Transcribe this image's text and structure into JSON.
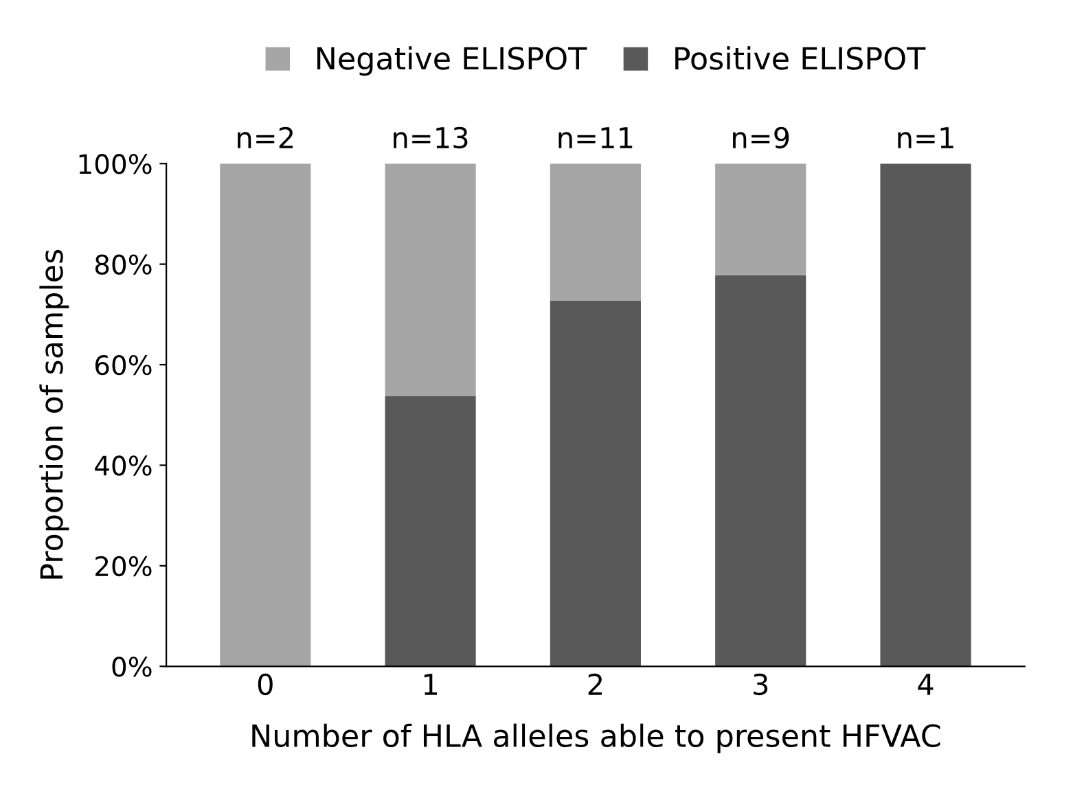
{
  "chart_data": {
    "type": "bar",
    "stacked": true,
    "xlabel": "Number of HLA alleles able to present HFVAC",
    "ylabel": "Proportion of samples",
    "categories": [
      "0",
      "1",
      "2",
      "3",
      "4"
    ],
    "series": [
      {
        "name": "Positive ELISPOT",
        "color": "#595959",
        "values": [
          0,
          53.8,
          72.7,
          77.8,
          100
        ]
      },
      {
        "name": "Negative ELISPOT",
        "color": "#a6a6a6",
        "values": [
          100,
          46.2,
          27.3,
          22.2,
          0
        ]
      }
    ],
    "ylim": [
      0,
      100
    ],
    "yticks": [
      {
        "value": 0,
        "label": "0%"
      },
      {
        "value": 20,
        "label": "20%"
      },
      {
        "value": 40,
        "label": "40%"
      },
      {
        "value": 60,
        "label": "60%"
      },
      {
        "value": 80,
        "label": "80%"
      },
      {
        "value": 100,
        "label": "100%"
      }
    ],
    "annotations": [
      {
        "text": "n=2",
        "x": "0",
        "y": 100
      },
      {
        "text": "n=13",
        "x": "1",
        "y": 100
      },
      {
        "text": "n=11",
        "x": "2",
        "y": 100
      },
      {
        "text": "n=9",
        "x": "3",
        "y": 100
      },
      {
        "text": "n=1",
        "x": "4",
        "y": 100
      }
    ],
    "legend": "top",
    "grid": false
  }
}
